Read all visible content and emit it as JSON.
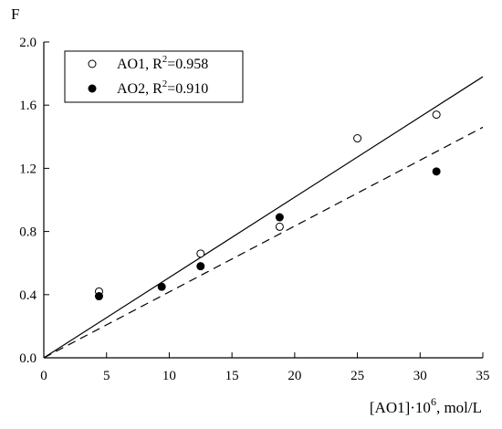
{
  "chart_data": {
    "type": "scatter",
    "title": "",
    "ylabel": "F",
    "xlabel": {
      "prefix": "[AO1]·10",
      "superscript": "6",
      "suffix": ", mol/L"
    },
    "xlim": [
      0,
      35
    ],
    "ylim": [
      0,
      2.0
    ],
    "x_ticks": [
      0,
      5,
      10,
      15,
      20,
      25,
      30,
      35
    ],
    "y_ticks": [
      0.0,
      0.4,
      0.8,
      1.2,
      1.6,
      2.0
    ],
    "y_tick_labels": [
      "0.0",
      "0.4",
      "0.8",
      "1.2",
      "1.6",
      "2.0"
    ],
    "grid": false,
    "legend_position": "top-left",
    "series": [
      {
        "name": "AO1",
        "legend": {
          "name": "AO1, R",
          "superscript": "2",
          "value": "=0.958"
        },
        "marker": "open-circle",
        "line_style": "solid",
        "points": [
          {
            "x": 4.4,
            "y": 0.42
          },
          {
            "x": 12.5,
            "y": 0.66
          },
          {
            "x": 18.8,
            "y": 0.83
          },
          {
            "x": 25.0,
            "y": 1.39
          },
          {
            "x": 31.3,
            "y": 1.54
          }
        ],
        "fit_line": {
          "x": [
            0,
            35
          ],
          "y": [
            0.0,
            1.78
          ]
        }
      },
      {
        "name": "AO2",
        "legend": {
          "name": "AO2, R",
          "superscript": "2",
          "value": "=0.910"
        },
        "marker": "filled-circle",
        "line_style": "dashed",
        "points": [
          {
            "x": 4.4,
            "y": 0.39
          },
          {
            "x": 9.4,
            "y": 0.45
          },
          {
            "x": 12.5,
            "y": 0.58
          },
          {
            "x": 18.8,
            "y": 0.89
          },
          {
            "x": 31.3,
            "y": 1.18
          }
        ],
        "fit_line": {
          "x": [
            0,
            35
          ],
          "y": [
            0.0,
            1.46
          ]
        }
      }
    ]
  }
}
